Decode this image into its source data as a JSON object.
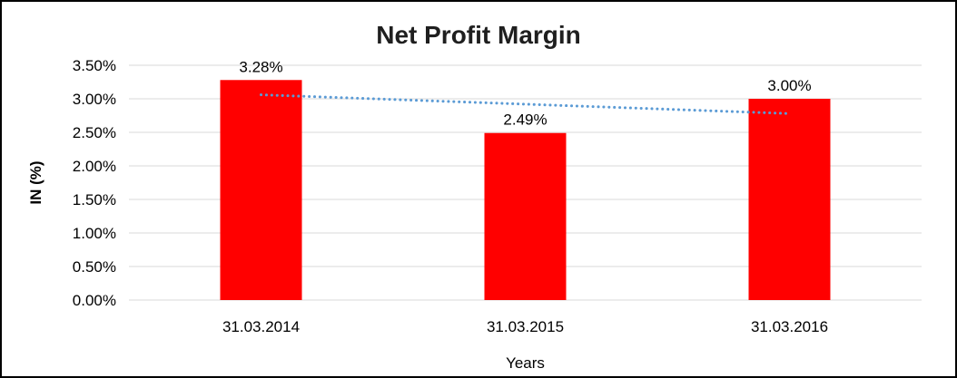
{
  "chart_data": {
    "type": "bar",
    "title": "Net Profit Margin",
    "xlabel": "Years",
    "ylabel": "IN (%)",
    "categories": [
      "31.03.2014",
      "31.03.2015",
      "31.03.2016"
    ],
    "values": [
      3.28,
      2.49,
      3.0
    ],
    "data_labels": [
      "3.28%",
      "2.49%",
      "3.00%"
    ],
    "ylim": [
      0,
      3.5
    ],
    "y_ticks": [
      {
        "value": 0.0,
        "label": "0.00%"
      },
      {
        "value": 0.5,
        "label": "0.50%"
      },
      {
        "value": 1.0,
        "label": "1.00%"
      },
      {
        "value": 1.5,
        "label": "1.50%"
      },
      {
        "value": 2.0,
        "label": "2.00%"
      },
      {
        "value": 2.5,
        "label": "2.50%"
      },
      {
        "value": 3.0,
        "label": "3.00%"
      },
      {
        "value": 3.5,
        "label": "3.50%"
      }
    ],
    "grid": true,
    "grid_color": "#d9d9d9",
    "bar_color": "#ff0000",
    "text_color": "#000000",
    "legend": "none",
    "trendline": {
      "style": "dotted",
      "color": "#5b9bd5",
      "start_value": 3.06,
      "end_value": 2.78
    }
  }
}
